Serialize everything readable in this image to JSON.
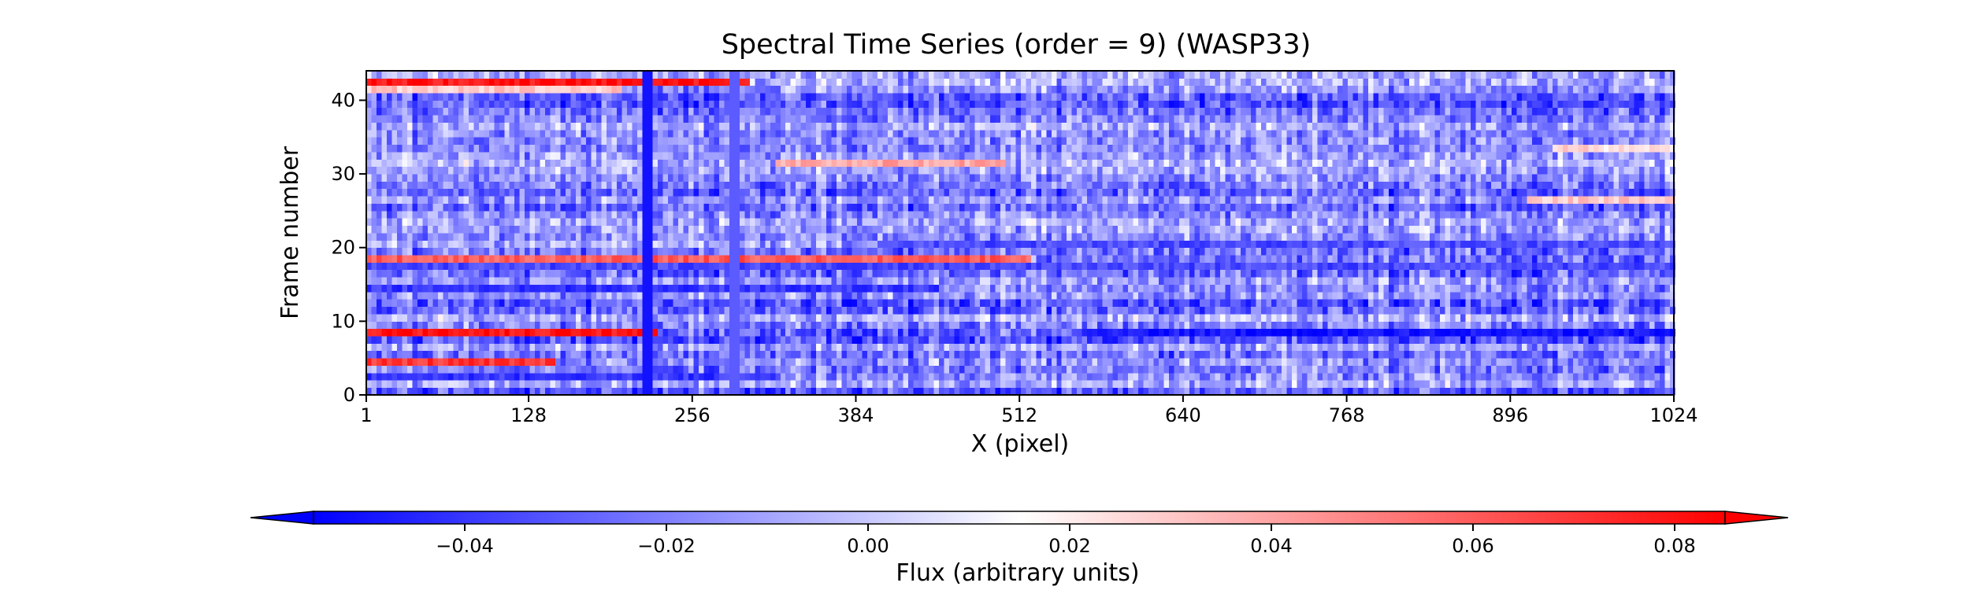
{
  "chart_data": {
    "type": "heatmap",
    "title": "Spectral Time Series (order = 9) (WASP33)",
    "xlabel": "X (pixel)",
    "ylabel": "Frame number",
    "xlim": [
      1,
      1024
    ],
    "ylim": [
      0,
      44
    ],
    "x_ticks": [
      "1",
      "128",
      "256",
      "384",
      "512",
      "640",
      "768",
      "896",
      "1024"
    ],
    "y_ticks": [
      "0",
      "10",
      "20",
      "30",
      "40"
    ],
    "grid": false,
    "colormap": "bwr",
    "colorbar": {
      "label": "Flux (arbitrary units)",
      "vmin": -0.055,
      "vmax": 0.085,
      "extend": "both",
      "ticks": [
        "−0.04",
        "−0.02",
        "0.00",
        "0.02",
        "0.04",
        "0.06",
        "0.08"
      ],
      "tick_values": [
        -0.04,
        -0.02,
        0.0,
        0.02,
        0.04,
        0.06,
        0.08
      ]
    },
    "rows": 44,
    "columns": 1024,
    "row_features": [
      {
        "frame": 42,
        "x_range": [
          1,
          300
        ],
        "flux": 0.08
      },
      {
        "frame": 41,
        "x_range": [
          1,
          200
        ],
        "flux": 0.03
      },
      {
        "frame": 31,
        "x_range": [
          320,
          500
        ],
        "flux": 0.04
      },
      {
        "frame": 18,
        "x_range": [
          1,
          520
        ],
        "flux": 0.06
      },
      {
        "frame": 8,
        "x_range": [
          1,
          230
        ],
        "flux": 0.08
      },
      {
        "frame": 8,
        "x_range": [
          560,
          1024
        ],
        "flux": -0.05
      },
      {
        "frame": 4,
        "x_range": [
          1,
          150
        ],
        "flux": 0.07
      },
      {
        "frame": 2,
        "x_range": [
          1,
          320
        ],
        "flux": -0.04
      },
      {
        "frame": 17,
        "x_range": [
          1,
          1024
        ],
        "flux": -0.035
      },
      {
        "frame": 14,
        "x_range": [
          1,
          450
        ],
        "flux": -0.04
      },
      {
        "frame": 20,
        "x_range": [
          400,
          1024
        ],
        "flux": -0.035
      },
      {
        "frame": 26,
        "x_range": [
          910,
          1024
        ],
        "flux": 0.03
      },
      {
        "frame": 33,
        "x_range": [
          930,
          1024
        ],
        "flux": 0.025
      }
    ],
    "column_features": [
      {
        "x": 220,
        "frame_range": [
          0,
          44
        ],
        "flux": -0.05
      },
      {
        "x": 290,
        "frame_range": [
          0,
          44
        ],
        "flux": -0.03
      }
    ]
  }
}
